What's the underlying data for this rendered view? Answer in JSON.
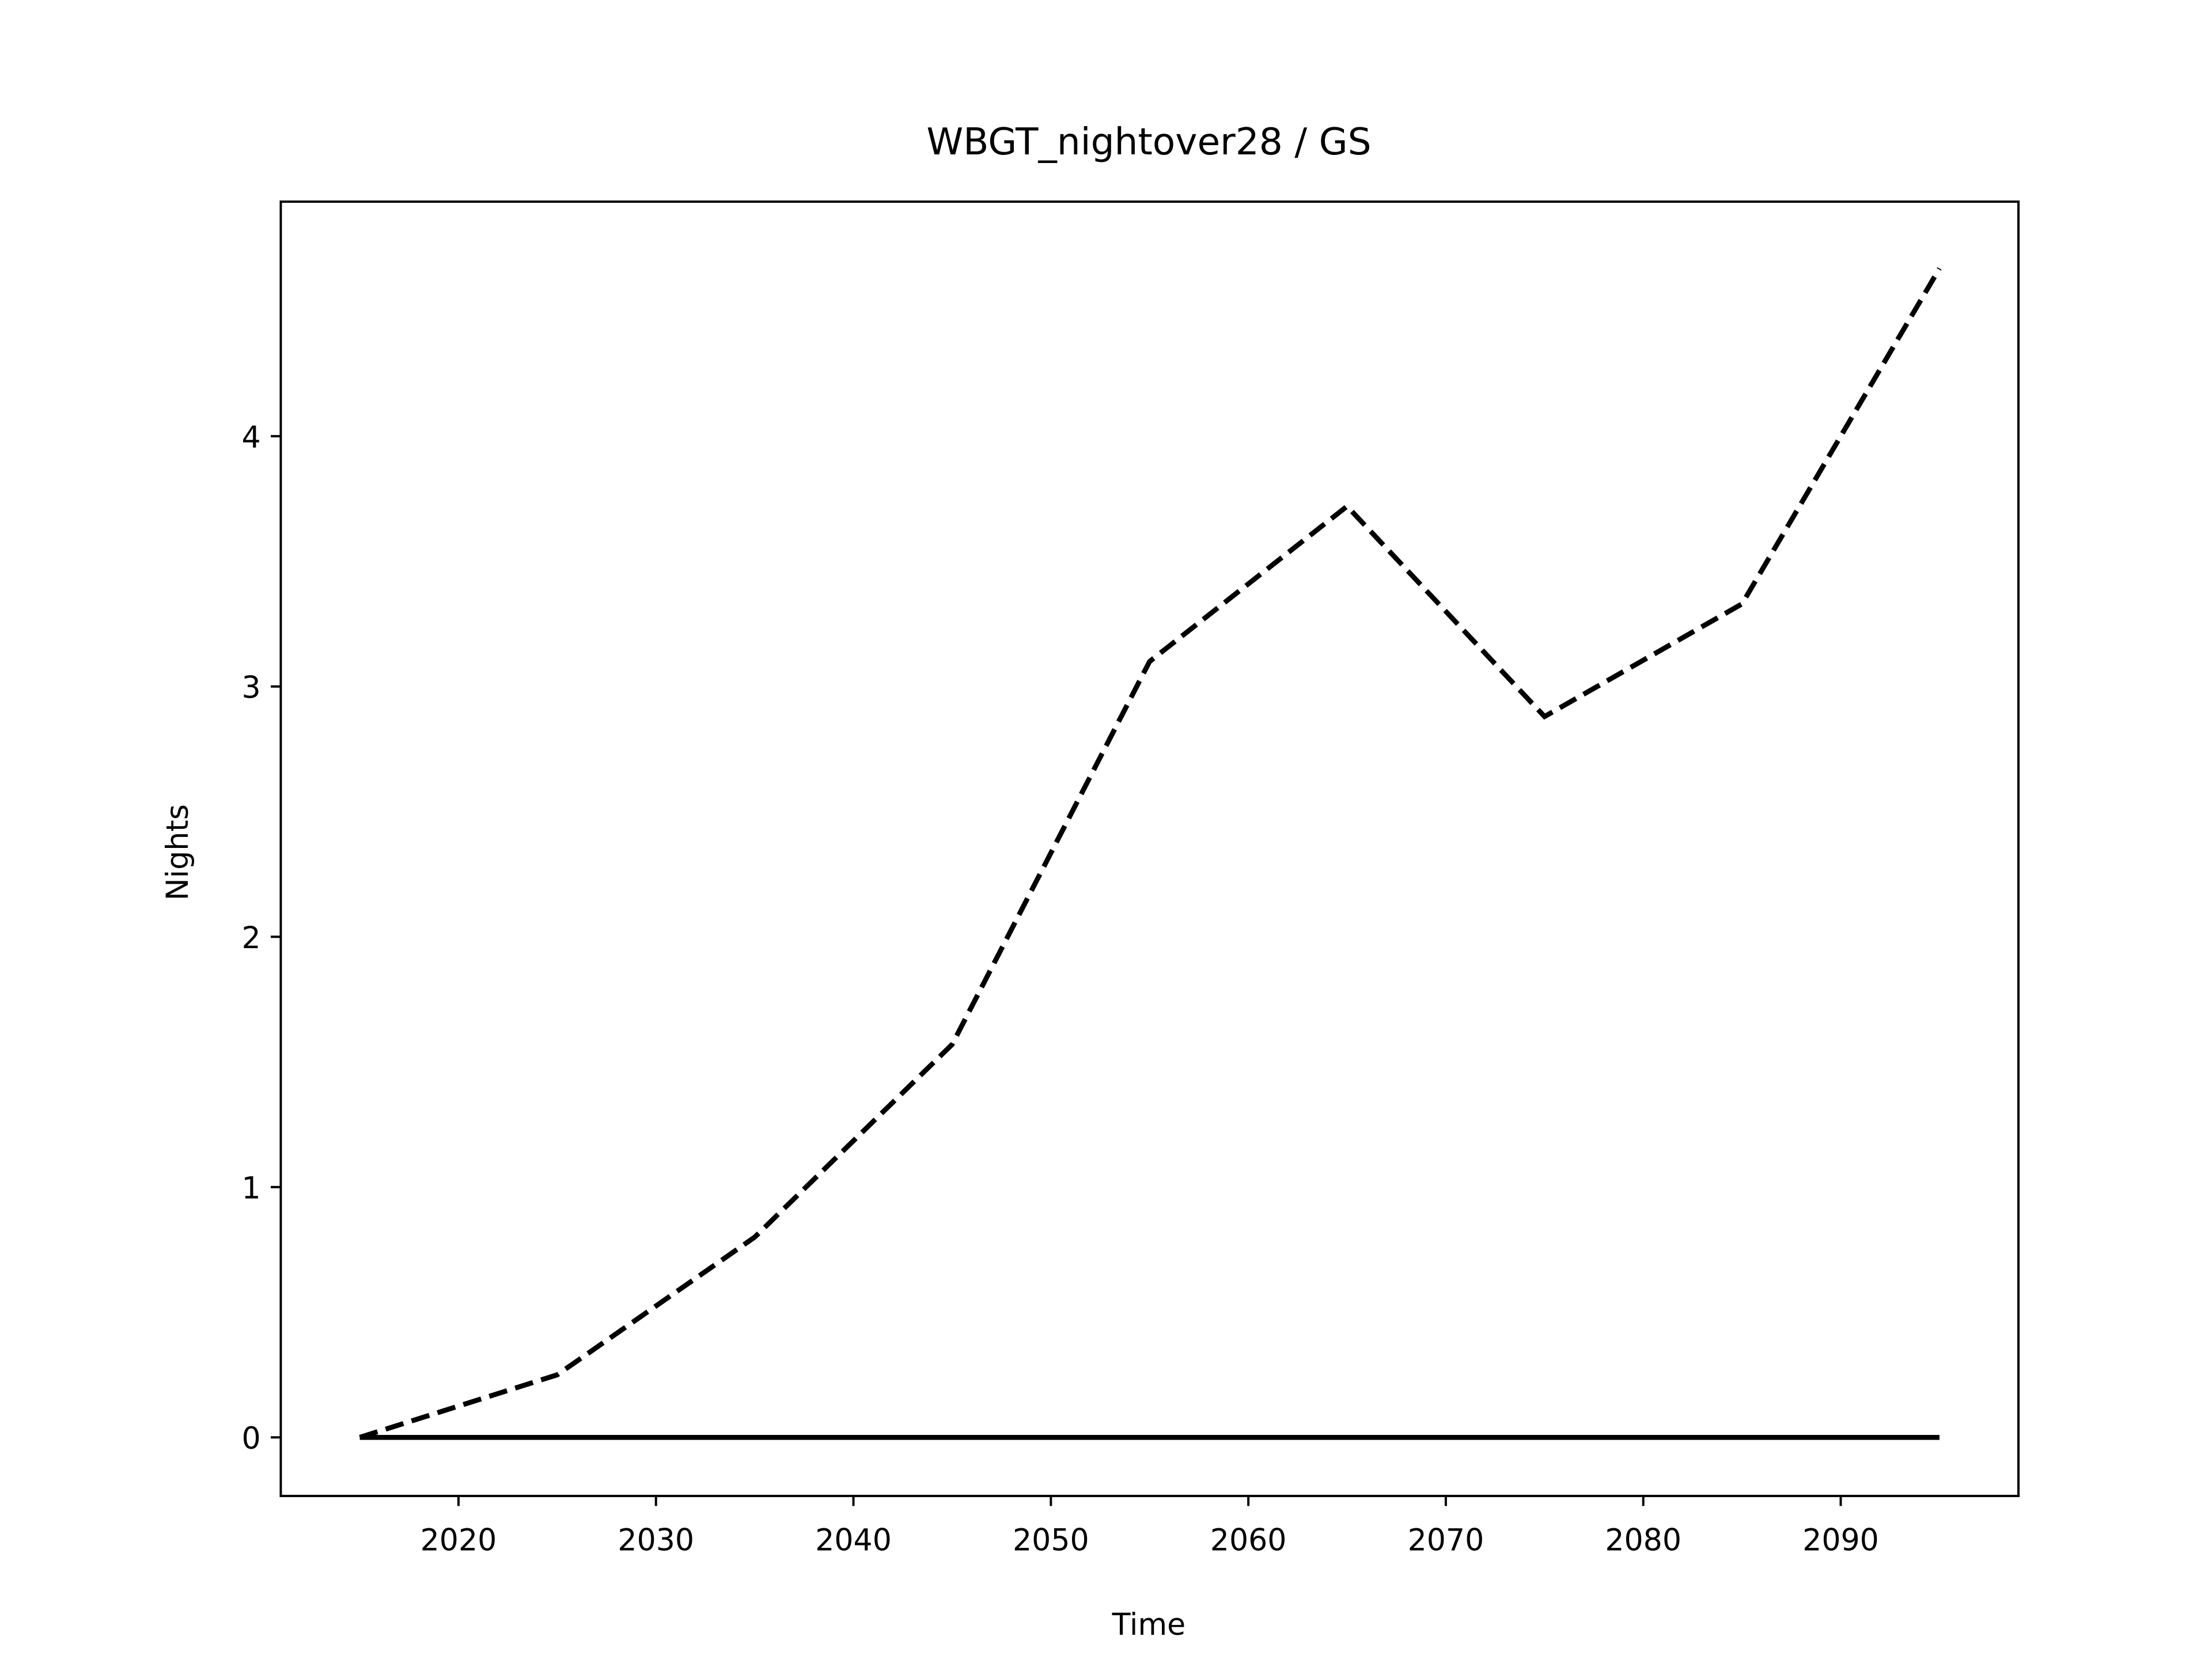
{
  "chart_data": {
    "type": "line",
    "title": "WBGT_nightover28 / GS",
    "xlabel": "Time",
    "ylabel": "Nights",
    "x": [
      2015,
      2025,
      2035,
      2045,
      2055,
      2065,
      2075,
      2085,
      2095
    ],
    "series": [
      {
        "color": "#000000",
        "linestyle": "dashed",
        "values": [
          0,
          0.25,
          0.8,
          1.57,
          3.1,
          3.72,
          2.88,
          3.33,
          4.67
        ]
      },
      {
        "color": "#000000",
        "linestyle": "solid",
        "values": [
          0,
          0,
          0,
          0,
          0,
          0,
          0,
          0,
          0
        ]
      }
    ],
    "xlim": [
      2011,
      2099
    ],
    "xticks": [
      2020,
      2030,
      2040,
      2050,
      2060,
      2070,
      2080,
      2090
    ],
    "ylim": [
      -0.234,
      4.937
    ],
    "yticks": [
      0,
      1,
      2,
      3,
      4
    ],
    "grid": false
  }
}
